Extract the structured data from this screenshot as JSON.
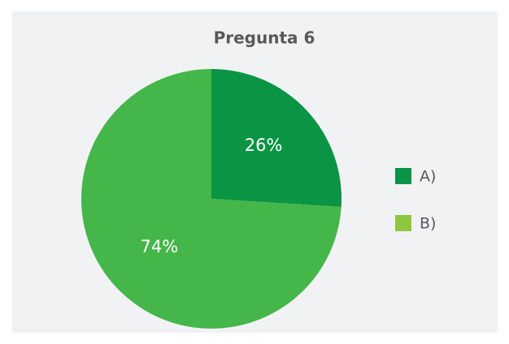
{
  "chart_data": {
    "type": "pie",
    "title": "Pregunta 6",
    "categories": [
      "A)",
      "B)"
    ],
    "values": [
      26,
      74
    ],
    "value_labels": [
      "26%",
      "74%"
    ],
    "colors": [
      "#0a9444",
      "#45b649"
    ],
    "legend_colors": [
      "#0a9444",
      "#8dc63f"
    ],
    "legend": "right"
  }
}
